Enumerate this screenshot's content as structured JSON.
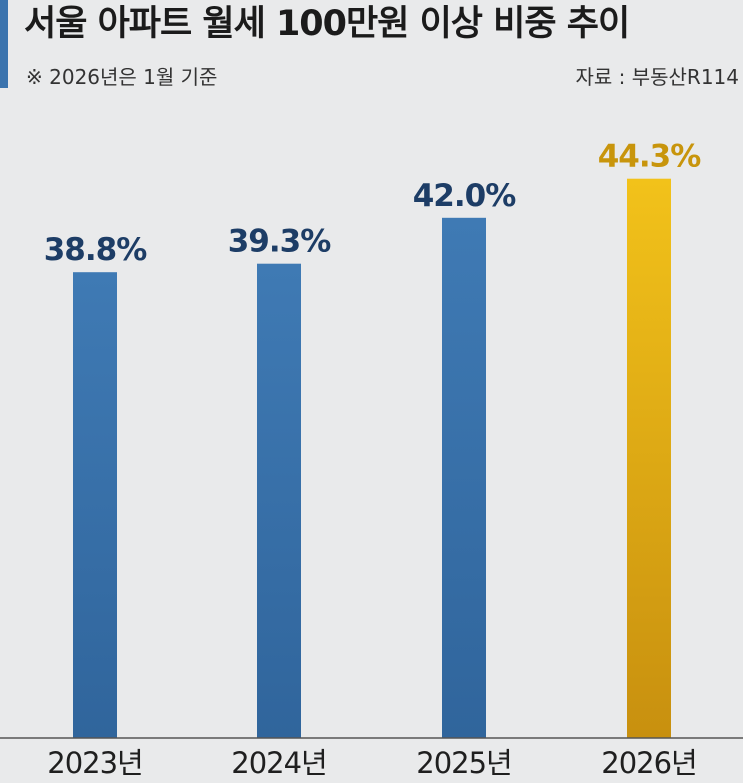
{
  "header": {
    "title": "서울 아파트 월세 100만원 이상 비중 추이",
    "note": "※ 2026년은 1월 기준",
    "source": "자료 : 부동산R114"
  },
  "colors": {
    "bar_blue": "#3b74ae",
    "bar_gold_top": "#f2c21a",
    "bar_gold_bottom": "#c8900f",
    "label_blue": "#1d3d66",
    "label_gold": "#c8950c",
    "background": "#e9eaeb"
  },
  "chart_data": {
    "type": "bar",
    "title": "서울 아파트 월세 100만원 이상 비중 추이",
    "categories": [
      "2023년",
      "2024년",
      "2025년",
      "2026년"
    ],
    "values": [
      38.8,
      39.3,
      42.0,
      44.3
    ],
    "value_labels": [
      "38.8%",
      "39.3%",
      "42.0%",
      "44.3%"
    ],
    "unit": "%",
    "highlight_index": 3,
    "axis_baseline": 0,
    "grid": false,
    "legend": "none"
  }
}
